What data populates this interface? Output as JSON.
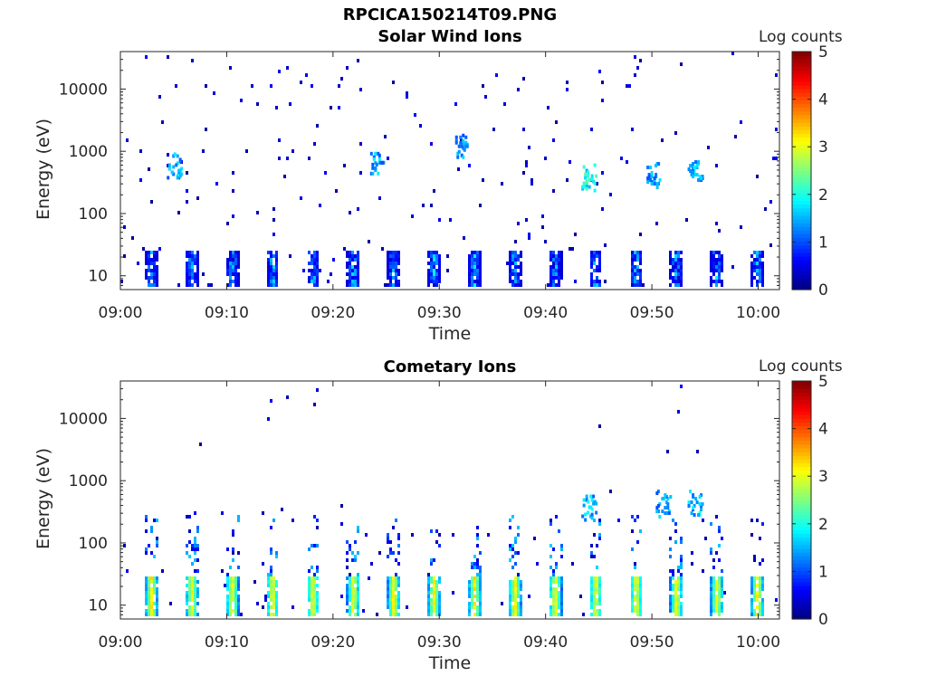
{
  "figure": {
    "filename": "RPCICA150214T09.PNG"
  },
  "colorbar": {
    "label": "Log counts",
    "ticks": [
      "0",
      "1",
      "2",
      "3",
      "4",
      "5"
    ],
    "range": [
      0,
      5
    ],
    "colormap": "jet"
  },
  "chart_data": [
    {
      "type": "heatmap",
      "title": "Solar Wind Ions",
      "xlabel": "Time",
      "ylabel": "Energy (eV)",
      "x_ticks": [
        "09:00",
        "09:10",
        "09:20",
        "09:30",
        "09:40",
        "09:50",
        "10:00"
      ],
      "y_ticks": [
        "10",
        "100",
        "1000",
        "10000"
      ],
      "y_scale": "log",
      "ylim": [
        6,
        40000
      ],
      "xlim": [
        "09:00",
        "10:02"
      ],
      "low_energy_bursts": {
        "energy_band": [
          6,
          28
        ],
        "level": "0-2"
      },
      "high_energy_features": [
        {
          "time": "09:05",
          "energy": 600,
          "level": 1.8
        },
        {
          "time": "09:24",
          "energy": 700,
          "level": 1.8
        },
        {
          "time": "09:32",
          "energy": 1200,
          "level": 1.7
        },
        {
          "time": "09:44",
          "energy": 400,
          "level": 2.4
        },
        {
          "time": "09:50",
          "energy": 450,
          "level": 1.8
        },
        {
          "time": "09:54",
          "energy": 450,
          "level": 1.9
        }
      ]
    },
    {
      "type": "heatmap",
      "title": "Cometary Ions",
      "xlabel": "Time",
      "ylabel": "Energy (eV)",
      "x_ticks": [
        "09:00",
        "09:10",
        "09:20",
        "09:30",
        "09:40",
        "09:50",
        "10:00"
      ],
      "y_ticks": [
        "10",
        "100",
        "1000",
        "10000"
      ],
      "y_scale": "log",
      "ylim": [
        6,
        40000
      ],
      "xlim": [
        "09:00",
        "10:02"
      ],
      "low_energy_bursts": {
        "energy_band": [
          6,
          30
        ],
        "level": "1-3"
      },
      "high_energy_features": [
        {
          "time": "09:44",
          "energy": 400,
          "level": 2.0
        },
        {
          "time": "09:51",
          "energy": 450,
          "level": 1.8
        },
        {
          "time": "09:54",
          "energy": 450,
          "level": 1.9
        }
      ]
    }
  ]
}
